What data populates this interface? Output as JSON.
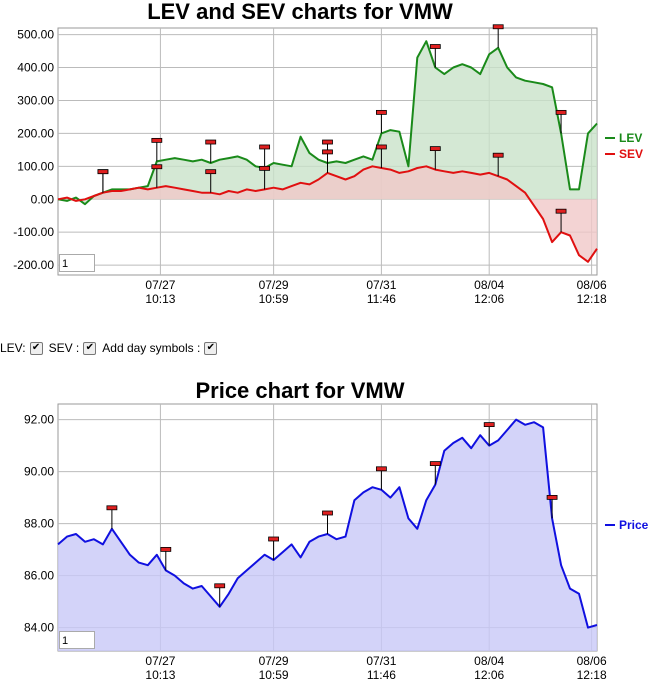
{
  "chart_data": [
    {
      "type": "line",
      "title": "LEV and SEV charts for VMW",
      "x_labels": [
        [
          "07/27",
          "10:13"
        ],
        [
          "07/29",
          "10:59"
        ],
        [
          "07/31",
          "11:46"
        ],
        [
          "08/04",
          "12:06"
        ],
        [
          "08/06",
          "12:18"
        ]
      ],
      "yticks": [
        "500.00",
        "400.00",
        "300.00",
        "200.00",
        "100.00",
        "0.00",
        "-100.00",
        "-200.00"
      ],
      "ylim": [
        -230,
        520
      ],
      "grid": true,
      "legend": "right",
      "series": [
        {
          "name": "LEV",
          "color": "#1a8a1a",
          "fill": "#c9e2c9",
          "values": [
            0,
            -5,
            5,
            -15,
            10,
            20,
            30,
            30,
            30,
            35,
            40,
            115,
            120,
            125,
            120,
            115,
            120,
            110,
            120,
            125,
            130,
            120,
            100,
            95,
            110,
            105,
            100,
            190,
            140,
            120,
            110,
            115,
            110,
            120,
            130,
            120,
            200,
            210,
            205,
            100,
            430,
            480,
            400,
            380,
            400,
            410,
            400,
            380,
            440,
            460,
            400,
            370,
            360,
            355,
            350,
            340,
            200,
            30,
            30,
            200,
            230
          ]
        },
        {
          "name": "SEV",
          "color": "#e01010",
          "fill": "#f0c8c8",
          "values": [
            0,
            5,
            -5,
            0,
            10,
            20,
            25,
            25,
            30,
            35,
            30,
            35,
            40,
            35,
            30,
            25,
            20,
            20,
            15,
            25,
            20,
            30,
            25,
            30,
            35,
            30,
            40,
            50,
            45,
            60,
            80,
            70,
            60,
            70,
            90,
            100,
            95,
            90,
            80,
            85,
            95,
            100,
            90,
            85,
            80,
            85,
            80,
            75,
            80,
            70,
            60,
            40,
            20,
            -20,
            -60,
            -130,
            -100,
            -110,
            -170,
            -190,
            -150
          ]
        }
      ],
      "zoom_value": "1"
    },
    {
      "type": "area",
      "title": "Price chart for VMW",
      "x_labels": [
        [
          "07/27",
          "10:13"
        ],
        [
          "07/29",
          "10:59"
        ],
        [
          "07/31",
          "11:46"
        ],
        [
          "08/04",
          "12:06"
        ],
        [
          "08/06",
          "12:18"
        ]
      ],
      "yticks": [
        "92.00",
        "90.00",
        "88.00",
        "86.00",
        "84.00"
      ],
      "ylim": [
        83.1,
        92.6
      ],
      "grid": true,
      "legend": "right",
      "series": [
        {
          "name": "Price",
          "color": "#1010e0",
          "fill": "#c8c8f8",
          "values": [
            87.2,
            87.5,
            87.6,
            87.3,
            87.4,
            87.2,
            87.8,
            87.3,
            86.8,
            86.5,
            86.4,
            86.8,
            86.2,
            86.0,
            85.7,
            85.5,
            85.6,
            85.2,
            84.8,
            85.3,
            85.9,
            86.2,
            86.5,
            86.8,
            86.6,
            86.9,
            87.2,
            86.7,
            87.3,
            87.5,
            87.6,
            87.4,
            87.5,
            88.9,
            89.2,
            89.4,
            89.3,
            89.0,
            89.4,
            88.2,
            87.8,
            88.9,
            89.5,
            90.8,
            91.1,
            91.3,
            90.9,
            91.4,
            91.0,
            91.2,
            91.6,
            92.0,
            91.8,
            91.9,
            91.7,
            88.2,
            86.4,
            85.5,
            85.3,
            84.0,
            84.1
          ]
        }
      ],
      "zoom_value": "1"
    }
  ],
  "controls": {
    "lev_label": "LEV:",
    "sev_label": "SEV :",
    "day_label": "Add day symbols :",
    "check_mark": "✔"
  }
}
